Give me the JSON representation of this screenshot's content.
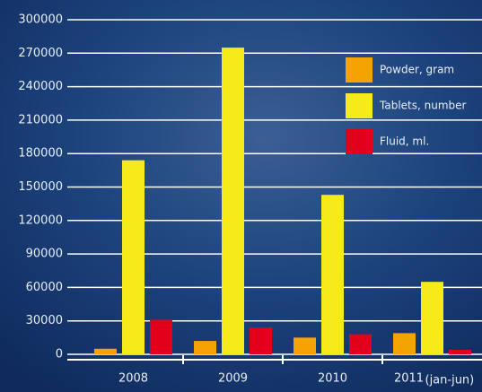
{
  "chart_data": {
    "type": "bar",
    "categories": [
      "2008",
      "2009",
      "2010",
      "2011"
    ],
    "annotations": [
      "(jan-jun)"
    ],
    "series": [
      {
        "name": "Powder, gram",
        "color": "#f5a300",
        "values": [
          5000,
          12000,
          15000,
          19000
        ]
      },
      {
        "name": "Tablets, number",
        "color": "#f7ea1a",
        "values": [
          174000,
          275000,
          143000,
          65000
        ]
      },
      {
        "name": "Fluid, ml.",
        "color": "#e3001b",
        "values": [
          31000,
          24000,
          18000,
          4000
        ]
      }
    ],
    "ylim": [
      0,
      300000
    ],
    "yticks": [
      0,
      30000,
      60000,
      90000,
      120000,
      150000,
      180000,
      210000,
      240000,
      270000,
      300000
    ],
    "grid": true,
    "legend": "top-right"
  }
}
